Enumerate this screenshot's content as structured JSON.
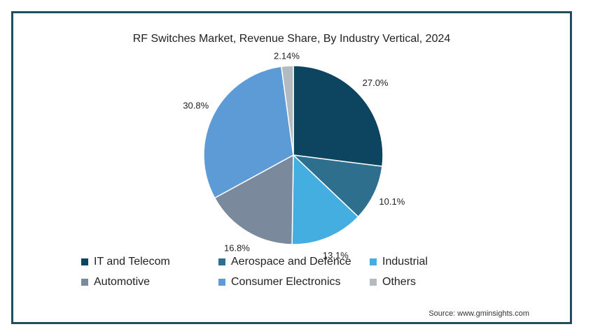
{
  "chart_data": {
    "type": "pie",
    "title": "RF Switches Market, Revenue Share, By Industry Vertical, 2024",
    "categories": [
      "IT and Telecom",
      "Aerospace and Defence",
      "Industrial",
      "Automotive",
      "Consumer Electronics",
      "Others"
    ],
    "values": [
      27.0,
      10.1,
      13.1,
      16.8,
      30.8,
      2.14
    ],
    "labels": [
      "27.0%",
      "10.1%",
      "13.1%",
      "16.8%",
      "30.8%",
      "2.14%"
    ],
    "colors": [
      "#0d4460",
      "#2e6f8e",
      "#45aee0",
      "#7a8a9c",
      "#5c9bd6",
      "#b3bac0"
    ],
    "legend_position": "bottom",
    "source": "Source: www.gminsights.com"
  }
}
